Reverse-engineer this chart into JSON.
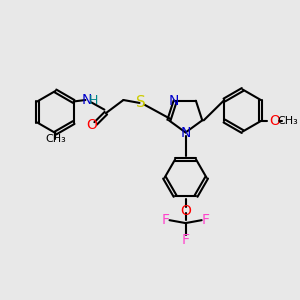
{
  "bg_color": "#e8e8e8",
  "bond_color": "#000000",
  "bond_width": 1.5,
  "atom_colors": {
    "N": "#0000cc",
    "O": "#ff0000",
    "S": "#cccc00",
    "F": "#ff44cc",
    "H": "#008888",
    "C": "#000000"
  },
  "font_size": 10,
  "small_font_size": 8
}
